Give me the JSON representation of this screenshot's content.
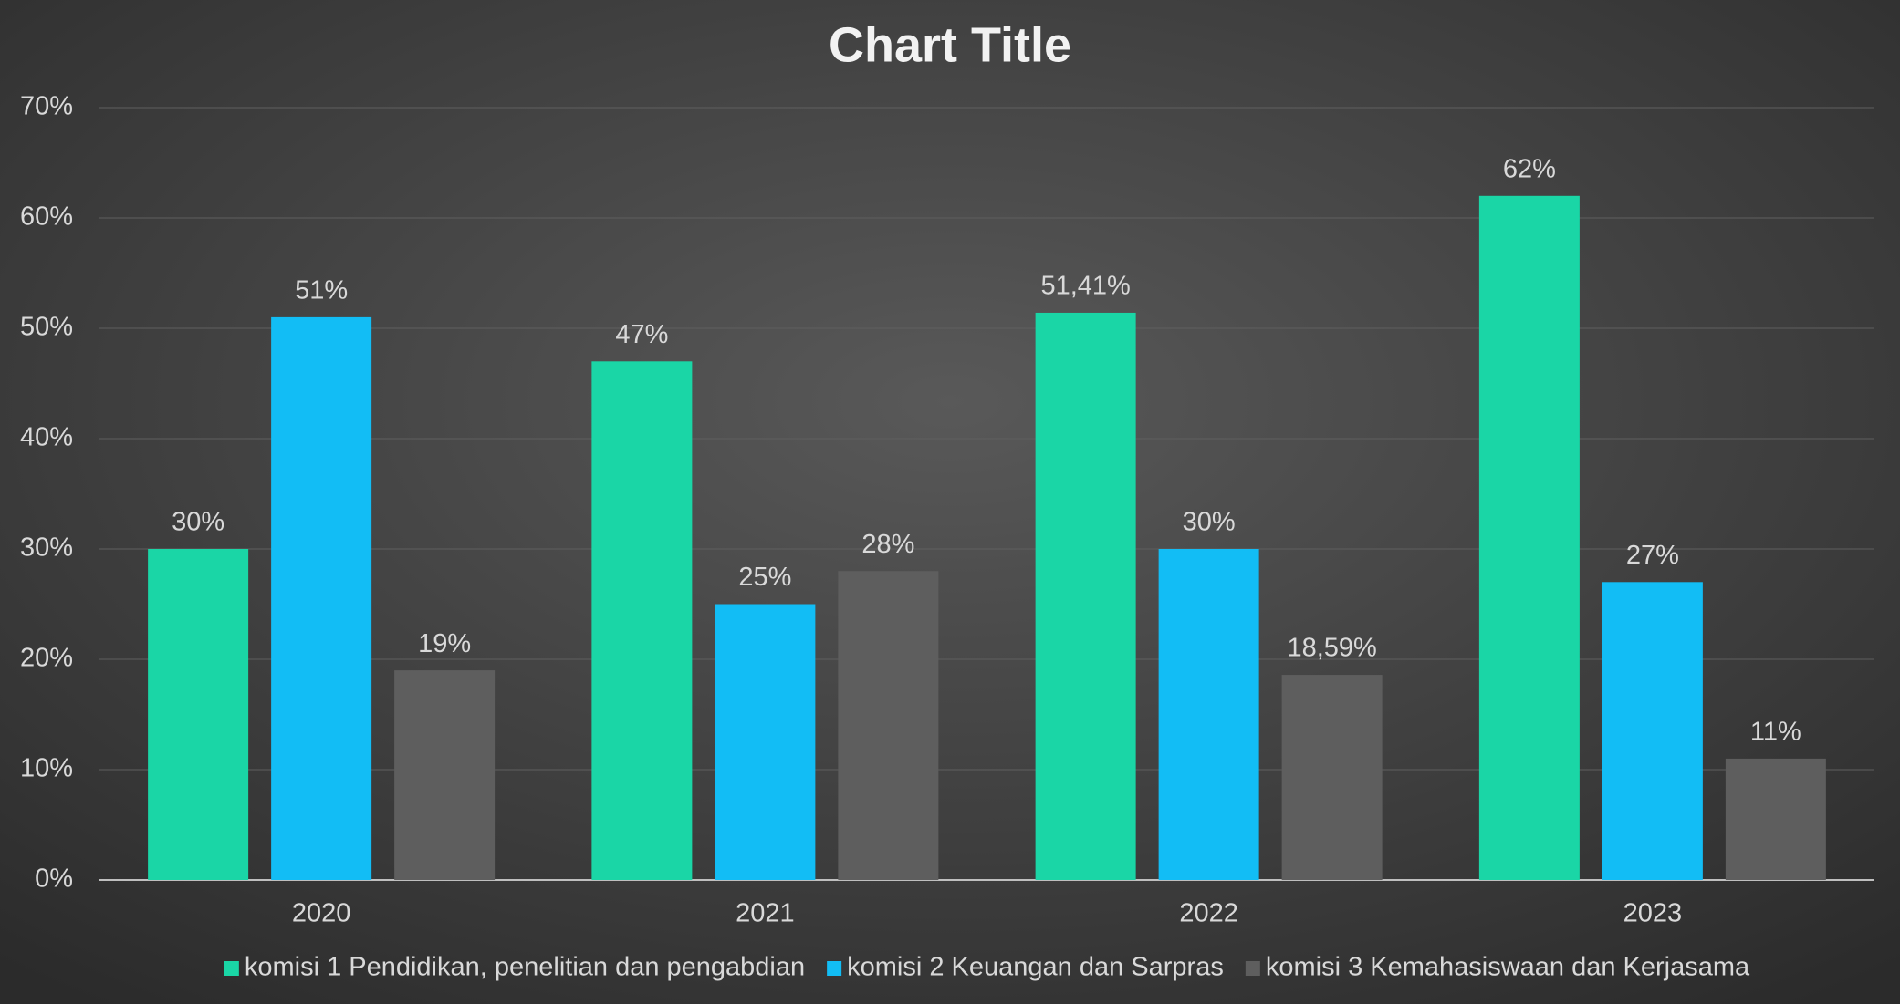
{
  "chart_data": {
    "type": "bar",
    "title": "Chart Title",
    "categories": [
      "2020",
      "2021",
      "2022",
      "2023"
    ],
    "series": [
      {
        "name": "komisi 1 Pendidikan, penelitian dan pengabdian",
        "color": "#1ad6a6",
        "values": [
          30,
          47,
          51.41,
          62
        ],
        "value_labels": [
          "30%",
          "47%",
          "51,41%",
          "62%"
        ]
      },
      {
        "name": "komisi 2 Keuangan dan Sarpras",
        "color": "#12bdf5",
        "values": [
          51,
          25,
          30,
          27
        ],
        "value_labels": [
          "51%",
          "25%",
          "30%",
          "27%"
        ]
      },
      {
        "name": "komisi 3 Kemahasiswaan dan Kerjasama",
        "color": "#5e5e5e",
        "values": [
          19,
          28,
          18.59,
          11
        ],
        "value_labels": [
          "19%",
          "28%",
          "18,59%",
          "11%"
        ]
      }
    ],
    "ylim": [
      0,
      70
    ],
    "yticks": [
      {
        "value": 0,
        "label": "0%"
      },
      {
        "value": 10,
        "label": "10%"
      },
      {
        "value": 20,
        "label": "20%"
      },
      {
        "value": 30,
        "label": "30%"
      },
      {
        "value": 40,
        "label": "40%"
      },
      {
        "value": 50,
        "label": "50%"
      },
      {
        "value": 60,
        "label": "60%"
      },
      {
        "value": 70,
        "label": "70%"
      }
    ],
    "grid": true,
    "legend": "bottom"
  }
}
